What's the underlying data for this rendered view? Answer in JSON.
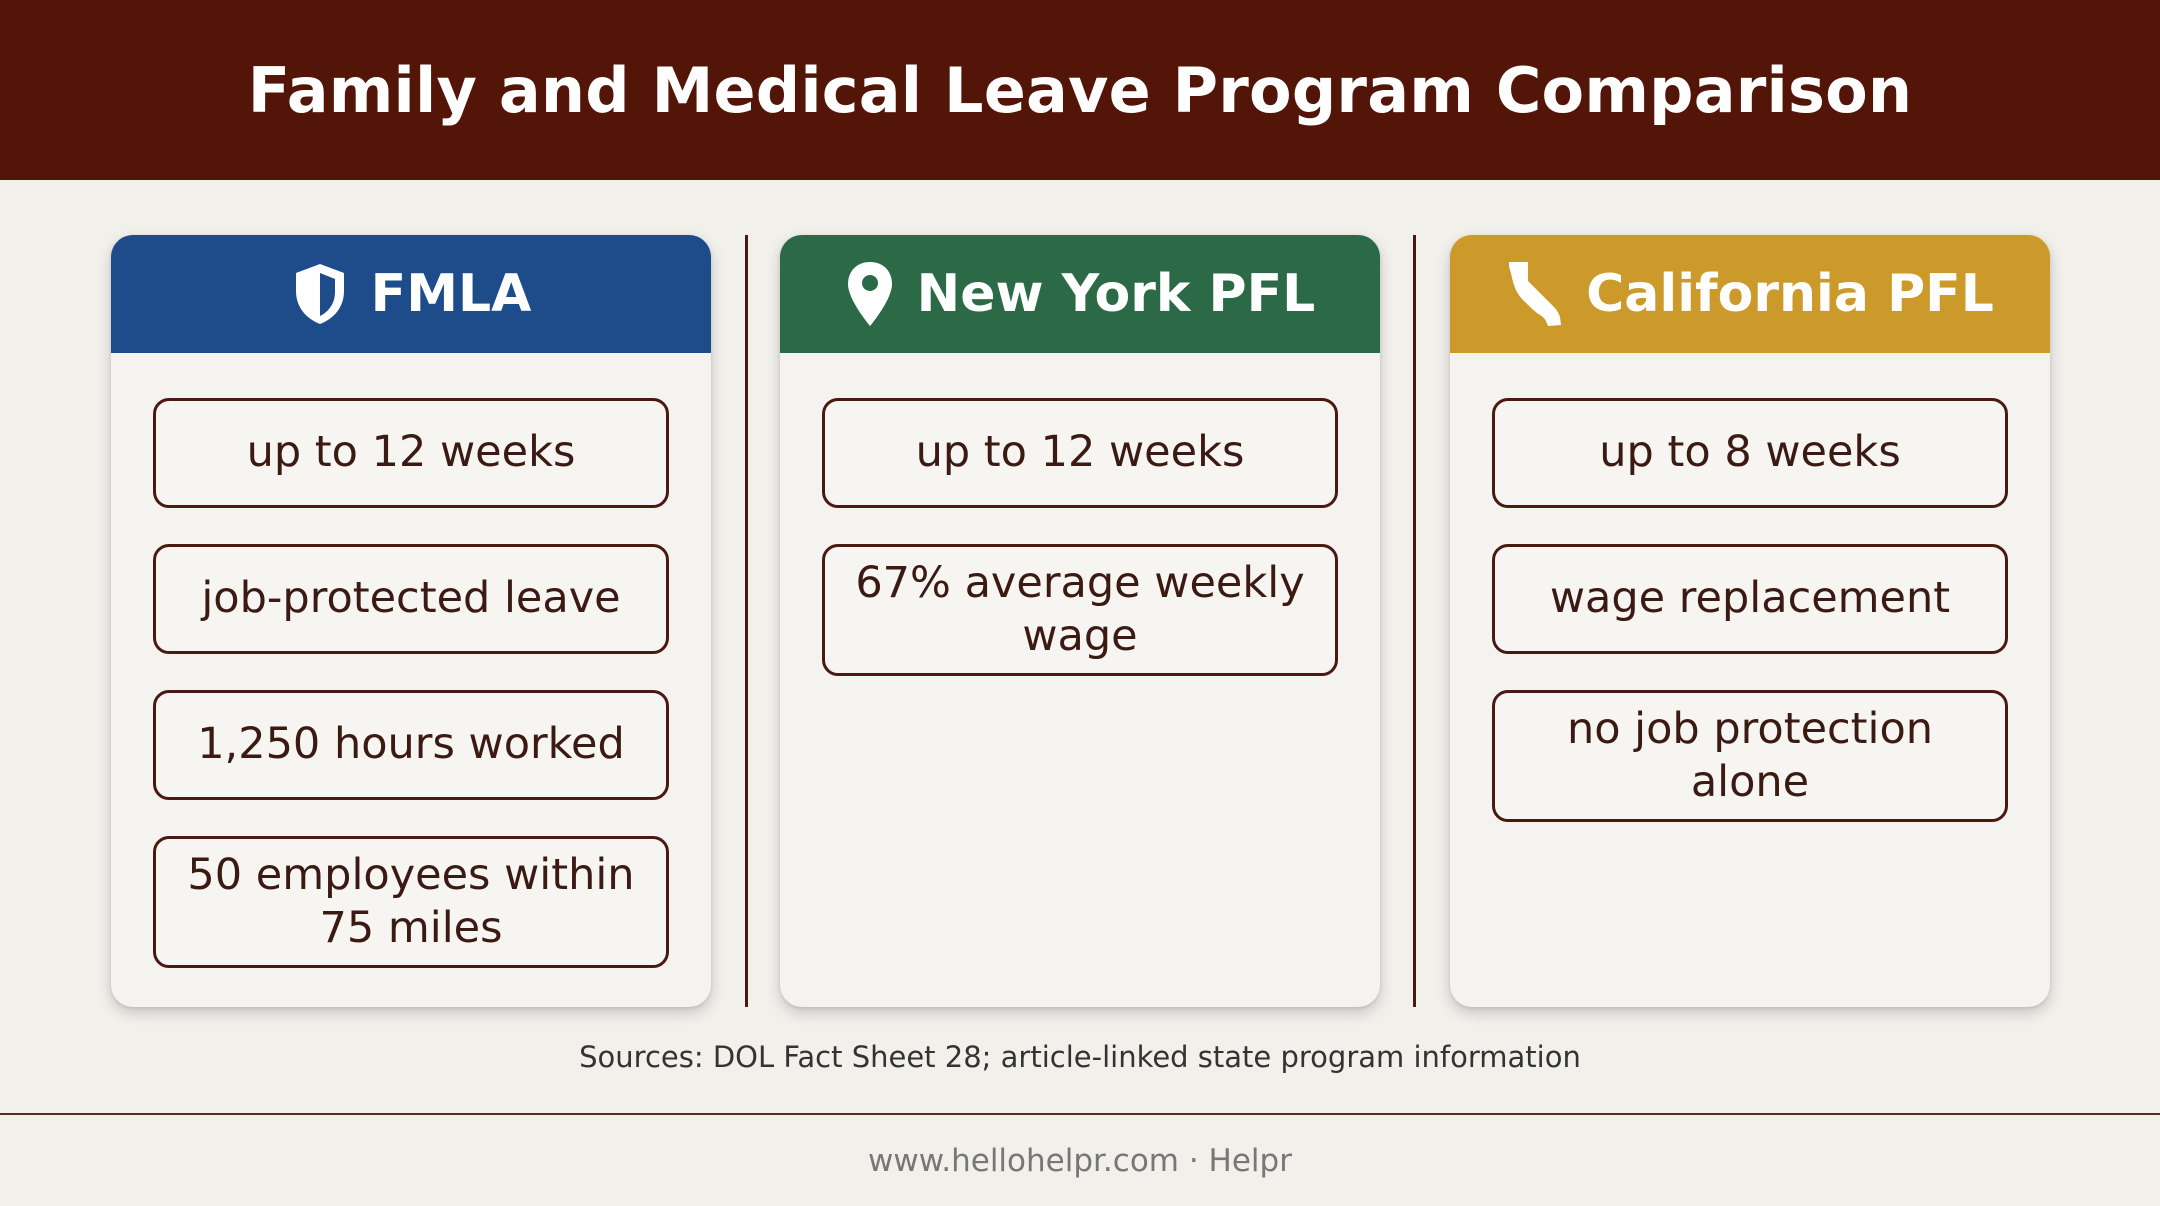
{
  "title": "Family and Medical Leave Program Comparison",
  "colors": {
    "header_bg": "#521507",
    "fmla": "#1e4b8a",
    "new_york": "#2c6a47",
    "california": "#cc9a2a",
    "item_border": "#4a1a12"
  },
  "cards": [
    {
      "title": "FMLA",
      "icon": "shield-icon",
      "items": [
        "up to 12 weeks",
        "job-protected leave",
        "1,250 hours worked",
        "50 employees within 75 miles"
      ]
    },
    {
      "title": "New York PFL",
      "icon": "map-pin-icon",
      "items": [
        "up to 12 weeks",
        "67% average weekly wage"
      ]
    },
    {
      "title": "California PFL",
      "icon": "california-state-icon",
      "items": [
        "up to 8 weeks",
        "wage replacement",
        "no job protection alone"
      ]
    }
  ],
  "sources": "Sources: DOL Fact Sheet 28; article-linked state program information",
  "footer": "www.hellohelpr.com · Helpr"
}
